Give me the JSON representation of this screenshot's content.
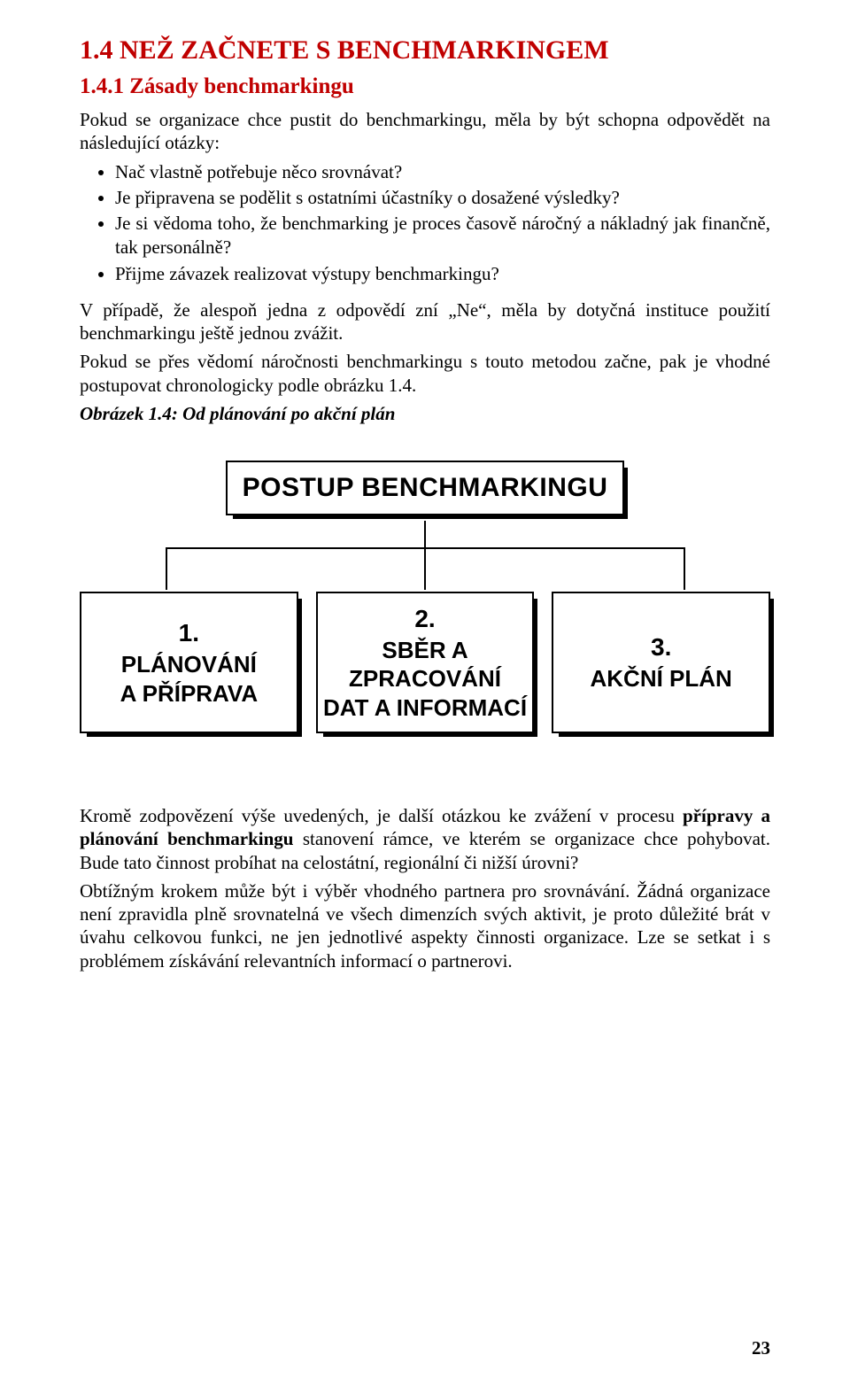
{
  "heading1": "1.4  NEŽ ZAČNETE S BENCHMARKINGEM",
  "heading2": "1.4.1 Zásady benchmarkingu",
  "intro": "Pokud se organizace chce pustit do benchmarkingu, měla by být schopna odpovědět na následující otázky:",
  "questions": [
    "Nač vlastně potřebuje něco srovnávat?",
    "Je připravena se podělit s ostatními účastníky o dosažené výsledky?",
    "Je si vědoma toho, že benchmarking je proces časově náročný a nákladný jak finančně, tak personálně?",
    "Přijme závazek realizovat výstupy benchmarkingu?"
  ],
  "p_after1": "V případě, že alespoň jedna z odpovědí zní „Ne“, měla by dotyčná instituce použití benchmarkingu ještě jednou zvážit.",
  "p_after2": "Pokud se přes vědomí náročnosti benchmarkingu s touto metodou začne, pak je vhodné postupovat chronologicky podle obrázku 1.4.",
  "fig_caption": "Obrázek 1.4: Od plánování po akční plán",
  "diagram": {
    "top": "POSTUP BENCHMARKINGU",
    "children": [
      {
        "num": "1.",
        "lines": [
          "PLÁNOVÁNÍ",
          "A PŘÍPRAVA"
        ]
      },
      {
        "num": "2.",
        "lines": [
          "SBĚR A ZPRACOVÁNÍ",
          "DAT A INFORMACÍ"
        ]
      },
      {
        "num": "3.",
        "lines": [
          "AKČNÍ PLÁN"
        ]
      }
    ]
  },
  "p_bottom1_a": "Kromě zodpovězení výše uvedených, je další otázkou ke zvážení v procesu ",
  "p_bottom1_b": "přípravy a plánování benchmarkingu",
  "p_bottom1_c": " stanovení rámce, ve kterém se organizace chce pohybovat. Bude tato činnost probíhat na celostátní, regionální či nižší úrovni?",
  "p_bottom2": "Obtížným krokem může být i výběr vhodného partnera pro srovnávání. Žádná organizace není zpravidla plně srovnatelná ve všech dimenzích svých aktivit, je proto důležité brát v úvahu celkovou funkci, ne jen jednotlivé aspekty činnosti organizace. Lze se setkat i s problémem získávání relevantních informací o partnerovi.",
  "page_number": "23",
  "colors": {
    "heading": "#c00000",
    "text": "#000000",
    "background": "#ffffff"
  }
}
